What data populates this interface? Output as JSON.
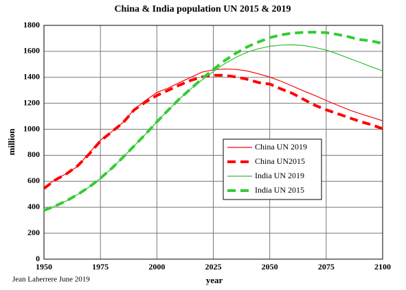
{
  "chart_data": {
    "type": "line",
    "title": "China & India population UN 2015 & 2019",
    "x_label": "year",
    "y_label": "million",
    "credit": "Jean Laherrere June 2019",
    "x": [
      1950,
      1955,
      1960,
      1965,
      1970,
      1975,
      1980,
      1985,
      1990,
      1995,
      2000,
      2005,
      2010,
      2015,
      2020,
      2025,
      2030,
      2035,
      2040,
      2045,
      2050,
      2055,
      2060,
      2065,
      2070,
      2075,
      2080,
      2085,
      2090,
      2095,
      2100
    ],
    "series": [
      {
        "name": "China UN 2019",
        "color": "#ff0000",
        "style": "solid",
        "values": [
          554,
          612,
          660,
          715,
          818,
          916,
          981,
          1052,
          1154,
          1222,
          1283,
          1317,
          1360,
          1400,
          1440,
          1458,
          1464,
          1461,
          1449,
          1427,
          1402,
          1370,
          1333,
          1295,
          1260,
          1222,
          1185,
          1150,
          1120,
          1093,
          1065
        ]
      },
      {
        "name": "China  UN2015",
        "color": "#ff0000",
        "style": "dashed",
        "values": [
          544,
          609,
          657,
          720,
          808,
          910,
          980,
          1050,
          1150,
          1210,
          1260,
          1300,
          1340,
          1376,
          1403,
          1416,
          1415,
          1403,
          1385,
          1360,
          1348,
          1310,
          1277,
          1230,
          1185,
          1150,
          1120,
          1090,
          1060,
          1035,
          1004
        ]
      },
      {
        "name": "India UN 2019",
        "color": "#33bb33",
        "style": "solid",
        "values": [
          376,
          409,
          450,
          499,
          555,
          623,
          699,
          784,
          873,
          963,
          1057,
          1147,
          1234,
          1310,
          1380,
          1445,
          1504,
          1554,
          1593,
          1620,
          1639,
          1648,
          1650,
          1645,
          1630,
          1610,
          1580,
          1547,
          1515,
          1480,
          1450
        ]
      },
      {
        "name": "India UN 2015",
        "color": "#33cc33",
        "style": "dashed",
        "values": [
          376,
          409,
          450,
          499,
          555,
          623,
          699,
          784,
          873,
          963,
          1057,
          1147,
          1234,
          1311,
          1389,
          1461,
          1528,
          1585,
          1634,
          1672,
          1705,
          1727,
          1740,
          1746,
          1748,
          1744,
          1730,
          1712,
          1690,
          1680,
          1660
        ]
      }
    ],
    "xlim": [
      1950,
      2100
    ],
    "xticks": [
      1950,
      1975,
      2000,
      2025,
      2050,
      2075,
      2100
    ],
    "ylim": [
      0,
      1800
    ],
    "yticks": [
      0,
      200,
      400,
      600,
      800,
      1000,
      1200,
      1400,
      1600,
      1800
    ],
    "grid": true
  }
}
